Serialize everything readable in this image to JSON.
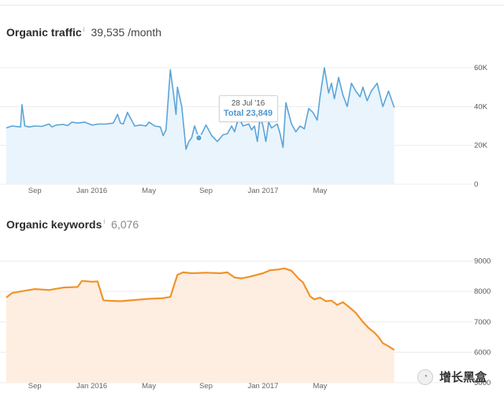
{
  "traffic": {
    "title": "Organic traffic",
    "info": "i",
    "value": "39,535 /month",
    "tooltip": {
      "date": "28 Jul '16",
      "total": "Total 23,849"
    }
  },
  "keywords": {
    "title": "Organic keywords",
    "info": "i",
    "value": "6,076"
  },
  "watermark": {
    "badge": "◔",
    "text": "增长黑盒"
  },
  "colors": {
    "traffic_line": "#5ba4d8",
    "traffic_fill": "#e9f4fc",
    "keywords_line": "#f0932b",
    "keywords_fill": "#fdeee1",
    "grid": "#ececec"
  },
  "chart_data": [
    {
      "type": "area",
      "title": "Organic traffic",
      "x_ticks": [
        "Sep",
        "Jan 2016",
        "May",
        "Sep",
        "Jan 2017",
        "May"
      ],
      "y_ticks": [
        "60K",
        "40K",
        "20K",
        "0"
      ],
      "y_tick_values": [
        60000,
        40000,
        20000,
        0
      ],
      "ylim": [
        0,
        60000
      ],
      "x_domain": [
        0,
        36
      ],
      "x_tick_positions": [
        2,
        6,
        10,
        14,
        18,
        22
      ],
      "series": [
        {
          "name": "Organic traffic",
          "x": [
            0,
            0.4,
            1,
            1.1,
            1.3,
            1.6,
            2,
            2.5,
            3,
            3.2,
            3.5,
            4,
            4.3,
            4.6,
            5,
            5.5,
            6,
            6.5,
            7,
            7.5,
            7.8,
            8,
            8.2,
            8.5,
            9,
            9.4,
            9.8,
            10,
            10.4,
            10.8,
            11,
            11.2,
            11.5,
            11.7,
            11.8,
            11.9,
            12,
            12.3,
            12.6,
            12.8,
            13,
            13.2,
            13.5,
            13.7,
            14,
            14.4,
            14.8,
            15.2,
            15.5,
            15.8,
            16,
            16.3,
            16.6,
            17,
            17.2,
            17.4,
            17.6,
            17.8,
            18,
            18.2,
            18.4,
            18.6,
            18.8,
            19,
            19.2,
            19.4,
            19.6,
            20,
            20.3,
            20.6,
            20.9,
            21,
            21.2,
            21.5,
            21.8,
            22,
            22.3,
            22.6,
            22.8,
            23,
            23.3,
            23.6,
            23.9,
            24.2,
            24.5,
            24.8,
            25,
            25.3,
            25.6,
            26,
            26.4,
            26.8,
            27.2
          ],
          "values": [
            29000,
            30000,
            29500,
            41000,
            30000,
            29500,
            30000,
            29800,
            31000,
            29500,
            30500,
            30800,
            30200,
            32000,
            31500,
            32000,
            30500,
            31000,
            31000,
            31500,
            36000,
            31500,
            31000,
            37000,
            30000,
            30500,
            30000,
            32000,
            30000,
            29500,
            25000,
            28000,
            59000,
            48000,
            42000,
            36000,
            50000,
            40000,
            18000,
            22000,
            24000,
            30000,
            23849,
            26000,
            30500,
            25000,
            22000,
            25500,
            26000,
            30000,
            27000,
            34500,
            30000,
            31000,
            28000,
            30000,
            22000,
            35000,
            30000,
            22000,
            32000,
            29000,
            30000,
            31000,
            26000,
            19000,
            42000,
            31000,
            27000,
            30000,
            28500,
            32000,
            39000,
            37000,
            33000,
            45000,
            60000,
            47000,
            52000,
            44000,
            55000,
            46000,
            40000,
            52000,
            48000,
            45000,
            50000,
            43000,
            48000,
            52000,
            40000,
            48000,
            39535
          ]
        }
      ]
    },
    {
      "type": "area",
      "title": "Organic keywords",
      "x_ticks": [
        "Sep",
        "Jan 2016",
        "May",
        "Sep",
        "Jan 2017",
        "May"
      ],
      "y_ticks": [
        "9000",
        "8000",
        "7000",
        "6000",
        "5000"
      ],
      "y_tick_values": [
        9000,
        8000,
        7000,
        6000,
        5000
      ],
      "ylim": [
        5000,
        9300
      ],
      "x_domain": [
        0,
        36
      ],
      "x_tick_positions": [
        2,
        6,
        10,
        14,
        18,
        22
      ],
      "series": [
        {
          "name": "Organic keywords",
          "x": [
            0,
            0.4,
            1,
            2,
            3,
            4,
            5,
            5.3,
            6,
            6.4,
            6.8,
            7,
            8,
            9,
            10,
            11,
            11.5,
            12,
            12.4,
            13,
            14,
            15,
            15.5,
            16,
            16.5,
            17,
            18,
            18.5,
            19,
            19.5,
            20,
            20.5,
            20.8,
            21.3,
            21.6,
            22,
            22.4,
            22.8,
            23.2,
            23.6,
            24,
            24.5,
            25,
            25.4,
            25.8,
            26.1,
            26.4,
            26.8,
            27.2
          ],
          "values": [
            7800,
            7950,
            8000,
            8080,
            8050,
            8130,
            8150,
            8350,
            8320,
            8330,
            7720,
            7700,
            7680,
            7720,
            7760,
            7780,
            7820,
            8550,
            8630,
            8600,
            8620,
            8600,
            8630,
            8460,
            8430,
            8480,
            8600,
            8700,
            8720,
            8760,
            8680,
            8420,
            8300,
            7840,
            7740,
            7800,
            7680,
            7700,
            7560,
            7650,
            7500,
            7300,
            7000,
            6800,
            6650,
            6500,
            6300,
            6200,
            6076
          ]
        }
      ]
    }
  ]
}
